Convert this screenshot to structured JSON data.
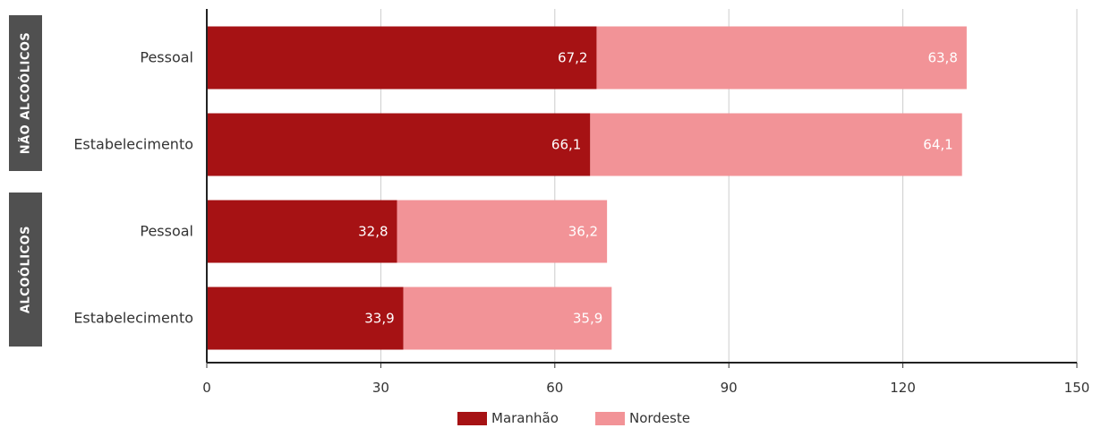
{
  "chart_data": {
    "type": "bar",
    "orientation": "horizontal",
    "stacked": true,
    "groups": [
      {
        "label": "NÃO ALCOÓLICOS",
        "categories": [
          "Pessoal",
          "Estabelecimento"
        ]
      },
      {
        "label": "ALCOÓLICOS",
        "categories": [
          "Pessoal",
          "Estabelecimento"
        ]
      }
    ],
    "categories": [
      "Pessoal",
      "Estabelecimento",
      "Pessoal",
      "Estabelecimento"
    ],
    "series": [
      {
        "name": "Maranhão",
        "color": "#a61214",
        "values": [
          67.2,
          66.1,
          32.8,
          33.9
        ]
      },
      {
        "name": "Nordeste",
        "color": "#f29397",
        "values": [
          63.8,
          64.1,
          36.2,
          35.9
        ]
      }
    ],
    "data_labels": [
      [
        "67,2",
        "66,1",
        "32,8",
        "33,9"
      ],
      [
        "63,8",
        "64,1",
        "36,2",
        "35,9"
      ]
    ],
    "xlim": [
      0,
      150
    ],
    "xticks": [
      "0",
      "30",
      "60",
      "90",
      "120",
      "150"
    ],
    "grid": true,
    "legend_position": "bottom"
  }
}
